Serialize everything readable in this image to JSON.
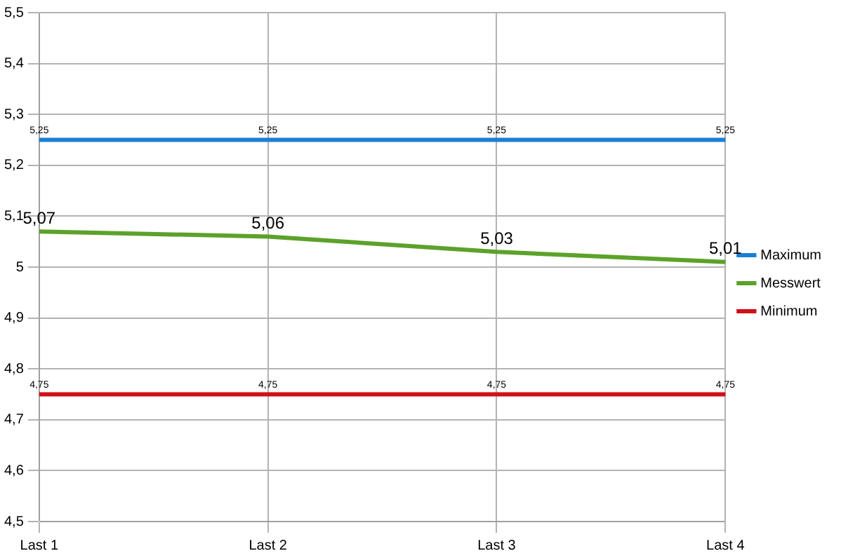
{
  "chart_data": {
    "type": "line",
    "categories": [
      "Last 1",
      "Last 2",
      "Last 3",
      "Last 4"
    ],
    "series": [
      {
        "name": "Maximum",
        "color": "#1a7fd4",
        "values": [
          5.25,
          5.25,
          5.25,
          5.25
        ],
        "value_labels": [
          "5,25",
          "5,25",
          "5,25",
          "5,25"
        ]
      },
      {
        "name": "Messwert",
        "color": "#5ca22a",
        "values": [
          5.07,
          5.06,
          5.03,
          5.01
        ],
        "value_labels": [
          "5,07",
          "5,06",
          "5,03",
          "5,01"
        ]
      },
      {
        "name": "Minimum",
        "color": "#d0101a",
        "values": [
          4.75,
          4.75,
          4.75,
          4.75
        ],
        "value_labels": [
          "4,75",
          "4,75",
          "4,75",
          "4,75"
        ]
      }
    ],
    "ylim": [
      4.5,
      5.5
    ],
    "yticks": [
      {
        "value": 4.5,
        "label": "4,5"
      },
      {
        "value": 4.6,
        "label": "4,6"
      },
      {
        "value": 4.7,
        "label": "4,7"
      },
      {
        "value": 4.8,
        "label": "4,8"
      },
      {
        "value": 4.9,
        "label": "4,9"
      },
      5,
      {
        "value": 5.1,
        "label": "5,1"
      },
      {
        "value": 5.2,
        "label": "5,2"
      },
      {
        "value": 5.3,
        "label": "5,3"
      },
      {
        "value": 5.4,
        "label": "5,4"
      },
      {
        "value": 5.5,
        "label": "5,5"
      }
    ],
    "grid": true,
    "legend": "right"
  }
}
